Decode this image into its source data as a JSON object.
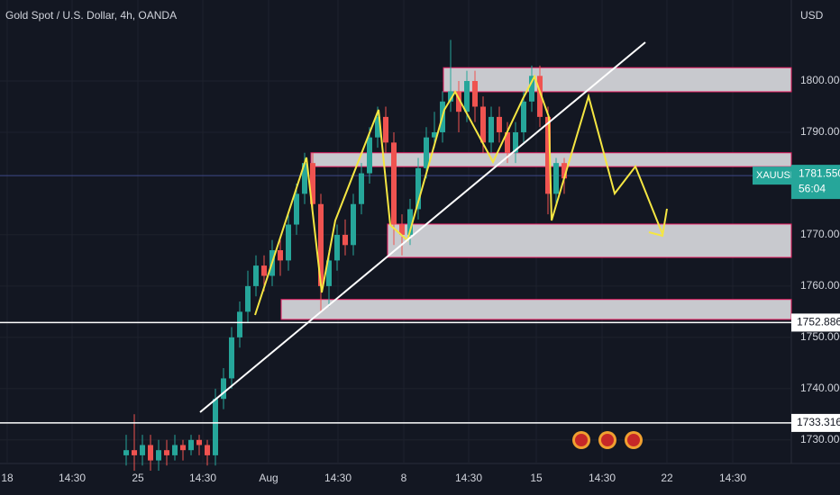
{
  "chart_data": {
    "type": "candlestick",
    "title": "Gold Spot / U.S. Dollar, 4h, OANDA",
    "currency": "USD",
    "up_color": "#26a69a",
    "down_color": "#ef5350",
    "ylim": [
      1725.4,
      1815.8
    ],
    "yticks": [
      {
        "value": 1730,
        "label": "1730.000"
      },
      {
        "value": 1740,
        "label": "1740.000"
      },
      {
        "value": 1750,
        "label": "1750.000"
      },
      {
        "value": 1760,
        "label": "1760.000"
      },
      {
        "value": 1770,
        "label": "1770.000"
      },
      {
        "value": 1790,
        "label": "1790.000"
      },
      {
        "value": 1800,
        "label": "1800.000"
      }
    ],
    "x_labels": [
      "18",
      "14:30",
      "25",
      "14:30",
      "Aug",
      "14:30",
      "8",
      "14:30",
      "15",
      "14:30",
      "22",
      "14:30"
    ],
    "open": [
      1727,
      1728,
      1727,
      1729,
      1726,
      1728,
      1727,
      1729,
      1728,
      1730,
      1729,
      1727,
      1738,
      1742,
      1750,
      1755,
      1760,
      1764,
      1762,
      1767,
      1765,
      1772,
      1778,
      1784,
      1776,
      1760,
      1765,
      1770,
      1768,
      1776,
      1782,
      1789,
      1793,
      1788,
      1772,
      1770,
      1775,
      1783,
      1789,
      1790,
      1796,
      1798,
      1794,
      1800,
      1795,
      1788,
      1793,
      1790,
      1786,
      1790,
      1796,
      1801,
      1793,
      1778,
      1784
    ],
    "high": [
      1731,
      1735,
      1731,
      1731,
      1730,
      1730,
      1731,
      1730,
      1731,
      1731,
      1730,
      1740,
      1744,
      1752,
      1757,
      1763,
      1766,
      1766,
      1769,
      1769,
      1774,
      1780,
      1786,
      1786,
      1778,
      1767,
      1772,
      1773,
      1778,
      1784,
      1791,
      1795,
      1795,
      1790,
      1774,
      1777,
      1785,
      1791,
      1794,
      1798,
      1808,
      1800,
      1802,
      1802,
      1797,
      1795,
      1795,
      1792,
      1792,
      1798,
      1803,
      1803,
      1795,
      1785,
      1785
    ],
    "low": [
      1725,
      1724,
      1725,
      1724,
      1724,
      1725,
      1726,
      1726,
      1727,
      1727,
      1725,
      1725,
      1736,
      1740,
      1748,
      1753,
      1758,
      1759,
      1760,
      1762,
      1763,
      1770,
      1776,
      1774,
      1755,
      1756,
      1763,
      1766,
      1766,
      1774,
      1780,
      1787,
      1786,
      1768,
      1766,
      1768,
      1773,
      1781,
      1787,
      1788,
      1794,
      1790,
      1792,
      1792,
      1786,
      1786,
      1788,
      1784,
      1784,
      1788,
      1794,
      1791,
      1774,
      1776,
      1778
    ],
    "close": [
      1728,
      1727,
      1729,
      1726,
      1728,
      1727,
      1729,
      1728,
      1730,
      1729,
      1727,
      1738,
      1742,
      1750,
      1755,
      1760,
      1764,
      1762,
      1767,
      1765,
      1772,
      1778,
      1784,
      1776,
      1760,
      1765,
      1770,
      1768,
      1776,
      1782,
      1789,
      1793,
      1788,
      1772,
      1770,
      1775,
      1783,
      1789,
      1790,
      1796,
      1798,
      1794,
      1800,
      1795,
      1788,
      1793,
      1790,
      1786,
      1790,
      1796,
      1801,
      1793,
      1778,
      1784,
      1781
    ],
    "zones": [
      {
        "top": 1802.6,
        "bottom": 1797.9
      },
      {
        "top": 1786,
        "bottom": 1783.3
      },
      {
        "top": 1772.1,
        "bottom": 1765.6
      },
      {
        "top": 1757.4,
        "bottom": 1753.5
      }
    ],
    "price_lines": [
      1752.886,
      1733.316
    ],
    "symbol": "XAUUSD",
    "last_price": {
      "value": 1781.55,
      "label": "1781.550"
    },
    "countdown": "56:04"
  }
}
